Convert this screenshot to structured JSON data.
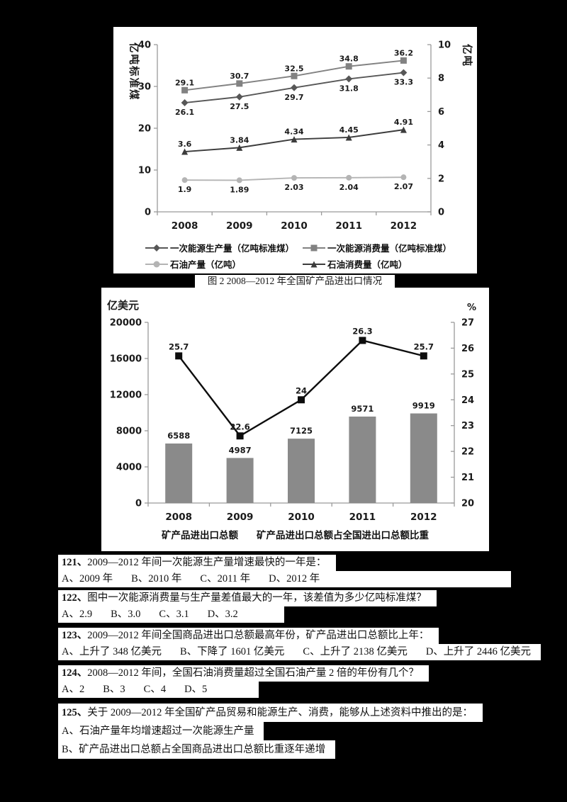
{
  "colors": {
    "background": "#000000",
    "paper": "#ffffff",
    "axis": "#9a9a9a",
    "text": "#1a1a1a",
    "bar": "#8a8a8a",
    "ratio_line": "#0d0d0d"
  },
  "figure_caption": "图 2  2008—2012 年全国矿产品进出口情况",
  "chart_data": [
    {
      "type": "line",
      "categories": [
        "2008",
        "2009",
        "2010",
        "2011",
        "2012"
      ],
      "left_axis": {
        "title": "亿吨标准煤",
        "min": 0,
        "max": 40,
        "ticks": [
          40,
          30,
          20,
          10,
          0
        ]
      },
      "right_axis": {
        "title": "亿吨",
        "min": 0,
        "max": 10,
        "ticks": [
          10,
          8,
          6,
          4,
          2,
          0
        ]
      },
      "grid": false,
      "legend_position": "bottom",
      "series": [
        {
          "name": "一次能源生产量（亿吨标准煤）",
          "axis": "left",
          "marker": "diamond",
          "color": "#575757",
          "label_side": "below",
          "values": [
            26.1,
            27.5,
            29.7,
            31.8,
            33.3
          ]
        },
        {
          "name": "一次能源消费量（亿吨标准煤）",
          "axis": "left",
          "marker": "square",
          "color": "#828282",
          "label_side": "above",
          "values": [
            29.1,
            30.7,
            32.5,
            34.8,
            36.2
          ]
        },
        {
          "name": "石油产量（亿吨）",
          "axis": "right",
          "marker": "circle",
          "color": "#b4b4b4",
          "label_side": "below",
          "values": [
            1.9,
            1.89,
            2.03,
            2.04,
            2.07
          ]
        },
        {
          "name": "石油消费量（亿吨）",
          "axis": "right",
          "marker": "triangle",
          "color": "#3c3c3c",
          "label_side": "above",
          "values": [
            3.6,
            3.84,
            4.34,
            4.45,
            4.91
          ]
        }
      ]
    },
    {
      "type": "combo",
      "categories": [
        "2008",
        "2009",
        "2010",
        "2011",
        "2012"
      ],
      "left_axis": {
        "title": "亿美元",
        "min": 0,
        "max": 20000,
        "ticks": [
          "20000",
          "16000",
          "12000",
          "8000",
          "4000",
          "0"
        ]
      },
      "right_axis": {
        "title": "%",
        "min": 20,
        "max": 27,
        "ticks": [
          27,
          26,
          25,
          24,
          23,
          22,
          21,
          20
        ]
      },
      "grid": false,
      "legend_position": "bottom",
      "bar_series": {
        "name": "矿产品进出口总额",
        "color": "#8a8a8a",
        "values": [
          6588,
          4987,
          7125,
          9571,
          9919
        ]
      },
      "line_series": {
        "name": "矿产品进出口总额占全国进出口总额比重",
        "color": "#0d0d0d",
        "marker": "square",
        "values": [
          25.7,
          22.6,
          24,
          26.3,
          25.7
        ]
      }
    }
  ],
  "questions": [
    {
      "number": "121、",
      "text": "2009—2012 年间一次能源生产量增速最快的一年是：",
      "options": [
        "A、2009 年",
        "B、2010 年",
        "C、2011 年",
        "D、2012 年"
      ],
      "options_layout": "inline"
    },
    {
      "number": "122、",
      "text": "图中一次能源消费量与生产量差值最大的一年，该差值为多少亿吨标准煤？",
      "options": [
        "A、2.9",
        "B、3.0",
        "C、3.1",
        "D、3.2"
      ],
      "options_layout": "inline"
    },
    {
      "number": "123、",
      "text": "2009—2012 年间全国商品进出口总额最高年份，矿产品进出口总额比上年：",
      "options": [
        "A、上升了 348 亿美元",
        "B、下降了 1601 亿美元",
        "C、上升了 2138 亿美元",
        "D、上升了 2446 亿美元"
      ],
      "options_layout": "inline"
    },
    {
      "number": "124、",
      "text": "2008—2012 年间，全国石油消费量超过全国石油产量 2 倍的年份有几个？",
      "options": [
        "A、2",
        "B、3",
        "C、4",
        "D、5"
      ],
      "options_layout": "inline"
    },
    {
      "number": "125、",
      "text": "关于 2009—2012 年全国矿产品贸易和能源生产、消费，能够从上述资料中推出的是：",
      "options": [
        "A、石油产量年均增速超过一次能源生产量",
        "B、矿产品进出口总额占全国商品进出口总额比重逐年递增"
      ],
      "options_layout": "stacked"
    }
  ]
}
